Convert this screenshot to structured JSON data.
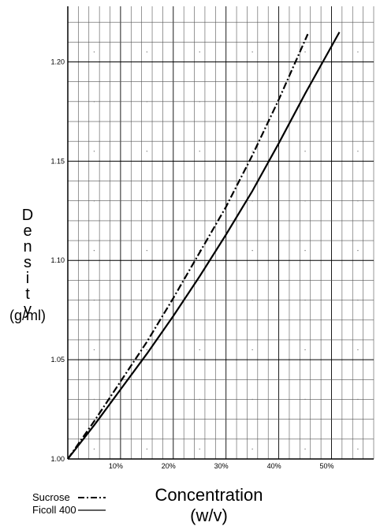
{
  "chart_data": {
    "type": "line",
    "ylabel_letters": [
      "D",
      "e",
      "n",
      "s",
      "i",
      "t",
      "y"
    ],
    "ylabel_unit": "(g/ml)",
    "xlabel_line1": "Concentration",
    "xlabel_line2": "(w/v)",
    "x_ticks": [
      {
        "value": 10,
        "label": "10%"
      },
      {
        "value": 20,
        "label": "20%"
      },
      {
        "value": 30,
        "label": "30%"
      },
      {
        "value": 40,
        "label": "40%"
      },
      {
        "value": 50,
        "label": "50%"
      }
    ],
    "y_ticks": [
      {
        "value": 1.0,
        "label": "1.00"
      },
      {
        "value": 1.05,
        "label": "1.05"
      },
      {
        "value": 1.1,
        "label": "1.10"
      },
      {
        "value": 1.15,
        "label": "1.15"
      },
      {
        "value": 1.2,
        "label": "1.20"
      }
    ],
    "xlim": [
      0,
      58
    ],
    "ylim": [
      1.0,
      1.228
    ],
    "grid": true,
    "series": [
      {
        "name": "Sucrose",
        "style": "dash-dot",
        "x": [
          0,
          5,
          10,
          15,
          20,
          25,
          30,
          35,
          40,
          45.5
        ],
        "y": [
          1.0,
          1.019,
          1.039,
          1.059,
          1.081,
          1.104,
          1.127,
          1.153,
          1.181,
          1.214
        ]
      },
      {
        "name": "Ficoll 400",
        "style": "solid",
        "x": [
          0,
          5,
          10,
          15,
          20,
          25,
          30,
          35,
          40,
          45,
          51.5
        ],
        "y": [
          1.0,
          1.017,
          1.035,
          1.053,
          1.072,
          1.092,
          1.113,
          1.135,
          1.159,
          1.184,
          1.215
        ]
      }
    ],
    "legend": {
      "placement": "bottom-left",
      "entries": [
        {
          "label": "Sucrose",
          "style": "dash-dot"
        },
        {
          "label": "Ficoll 400",
          "style": "solid"
        }
      ]
    }
  }
}
